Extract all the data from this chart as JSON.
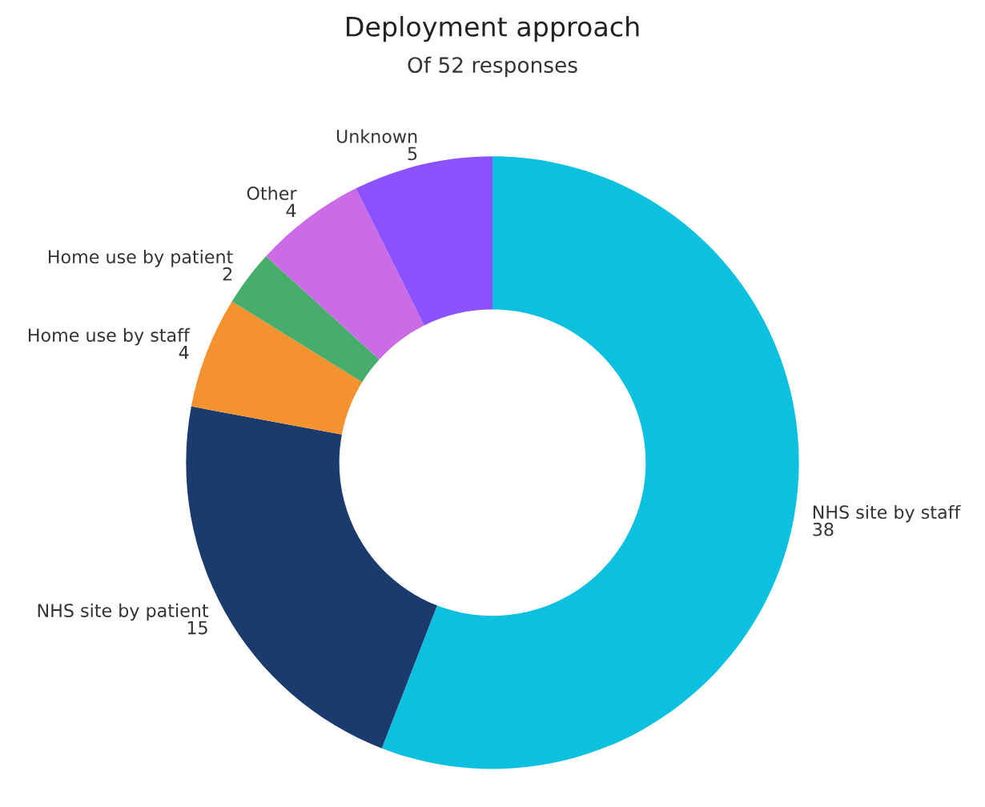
{
  "chart_data": {
    "type": "donut",
    "title": "Deployment approach",
    "subtitle": "Of 52 responses",
    "categories": [
      "NHS site by staff",
      "NHS site by patient",
      "Home use by staff",
      "Home use by patient",
      "Other",
      "Unknown"
    ],
    "values": [
      38,
      15,
      4,
      2,
      4,
      5
    ],
    "colors": [
      "#0cc0df",
      "#1b3b6f",
      "#f3922f",
      "#47ad6b",
      "#cb6ce6",
      "#8c52ff"
    ],
    "data_labels": true,
    "legend": false
  }
}
